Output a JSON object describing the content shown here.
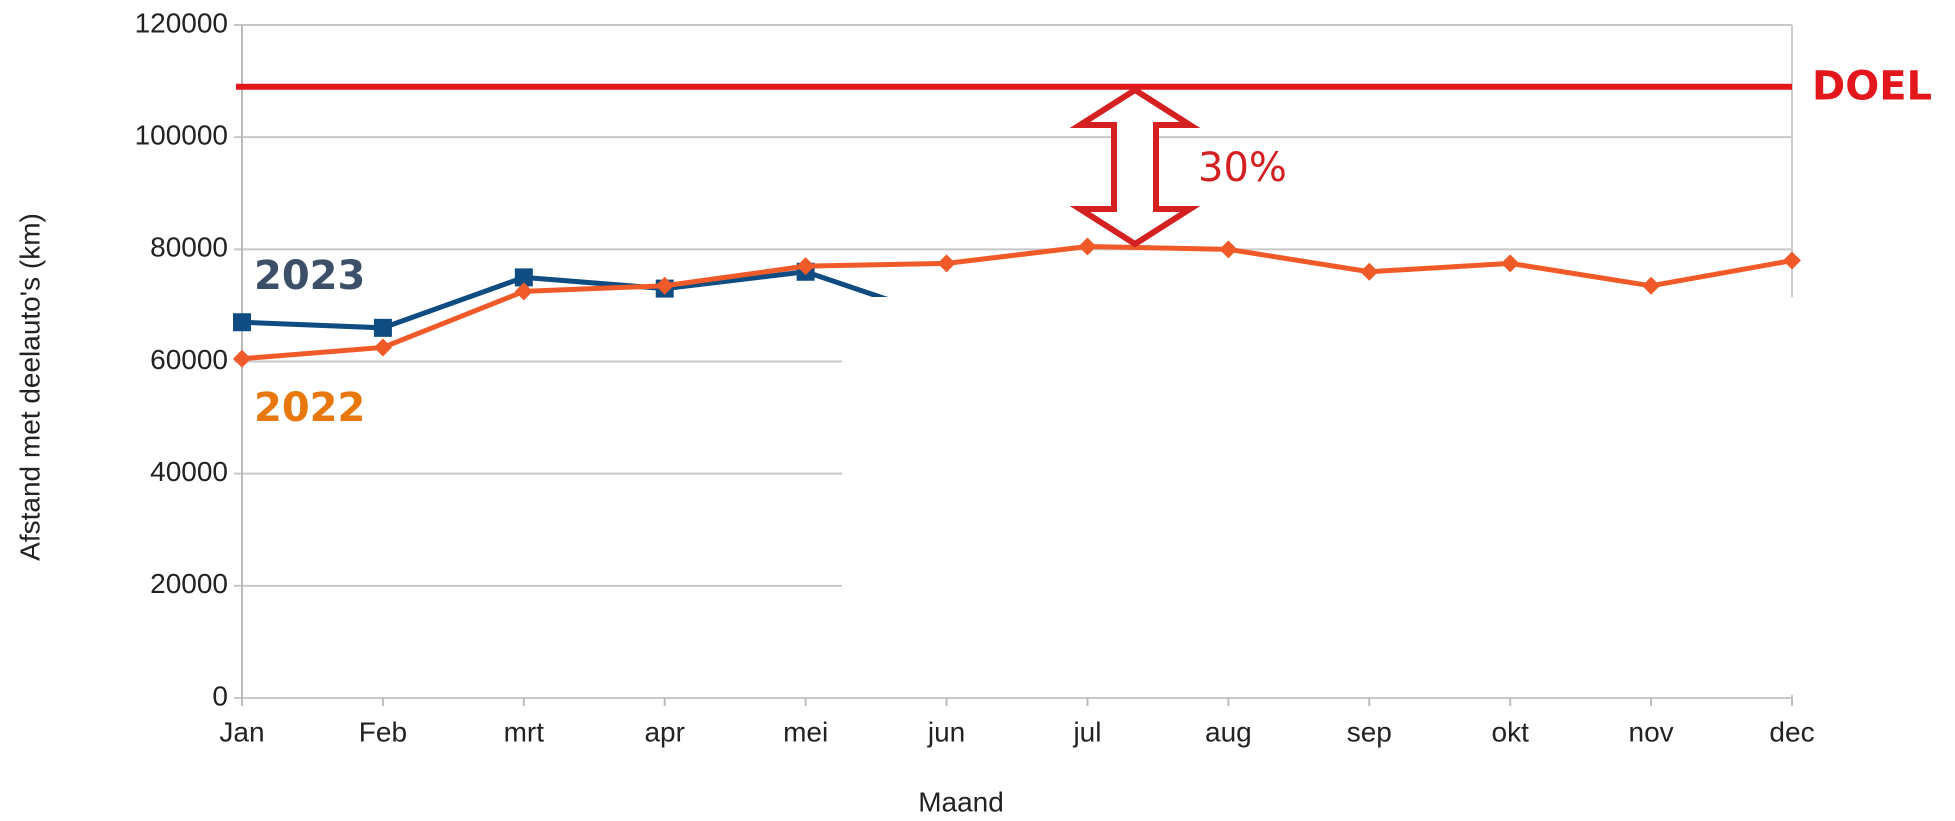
{
  "chart_data": {
    "type": "line",
    "x_label": "Maand",
    "y_label": "Afstand met deelauto's (km)",
    "categories": [
      "Jan",
      "Feb",
      "mrt",
      "apr",
      "mei",
      "jun",
      "jul",
      "aug",
      "sep",
      "okt",
      "nov",
      "dec"
    ],
    "series": [
      {
        "name": "2022",
        "color": "#f05a28",
        "label_color": "#e8780c",
        "marker": "diamond",
        "values": [
          60500,
          62500,
          72500,
          73500,
          77000,
          77500,
          80500,
          80000,
          76000,
          77500,
          73500,
          78000
        ]
      },
      {
        "name": "2023",
        "color": "#0f4c81",
        "label_color": "#3b5068",
        "marker": "square",
        "values": [
          67000,
          66000,
          75000,
          73000,
          76000,
          67500,
          null,
          null,
          null,
          null,
          null,
          null
        ]
      }
    ],
    "target": {
      "label": "DOEL",
      "value": 109000,
      "color": "#e3161b"
    },
    "gap_annotation": {
      "label": "30%",
      "color": "#d42020"
    },
    "ylim": [
      0,
      120000
    ],
    "yticks": [
      0,
      20000,
      40000,
      60000,
      80000,
      100000,
      120000
    ],
    "grid": true
  }
}
